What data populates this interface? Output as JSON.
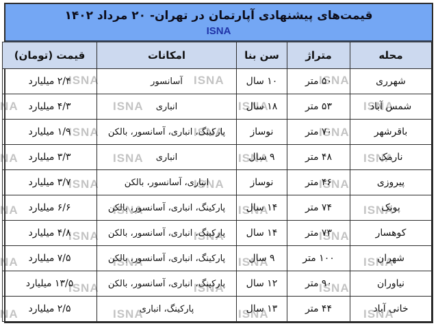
{
  "title": "قیمت‌های پیشنهادی آپارتمان در تهران- ۲۰ مرداد ۱۴۰۲",
  "agency": "ISNA",
  "watermark_text": "ISNA",
  "colors": {
    "title_band_bg": "#74a7f4",
    "agency_text": "#2034a8",
    "header_bg": "#ccd9ef",
    "border": "#2b2b2b",
    "watermark": "#c3c3c3"
  },
  "table": {
    "headers": {
      "neighborhood": "محله",
      "area": "متراژ",
      "age": "سن بنا",
      "amenities": "امکانات",
      "price": "قیمت (تومان)"
    },
    "rows": [
      {
        "neighborhood": "شهرری",
        "area": "۵۰ متر",
        "age": "۱۰ سال",
        "amenities": "آسانسور",
        "price": "۲/۴ میلیارد"
      },
      {
        "neighborhood": "شمس آباد",
        "area": "۵۳ متر",
        "age": "۱۸ سال",
        "amenities": "انباری",
        "price": "۴/۳ میلیارد"
      },
      {
        "neighborhood": "باقرشهر",
        "area": "۷۰ متر",
        "age": "نوساز",
        "amenities": "پارکینگ، انباری، آسانسور، بالکن",
        "price": "۱/۹ میلیارد"
      },
      {
        "neighborhood": "نارمک",
        "area": "۴۸ متر",
        "age": "۹ سال",
        "amenities": "انباری",
        "price": "۳/۳ میلیارد"
      },
      {
        "neighborhood": "پیروزی",
        "area": "۴۶ متر",
        "age": "نوساز",
        "amenities": "انباری، آسانسور، بالکن",
        "price": "۳/۷ میلیارد"
      },
      {
        "neighborhood": "پونک",
        "area": "۷۴ متر",
        "age": "۱۴ سال",
        "amenities": "پارکینگ، انباری، آسانسور، بالکن",
        "price": "۶/۶ میلیارد"
      },
      {
        "neighborhood": "کوهسار",
        "area": "۷۳ متر",
        "age": "۱۴ سال",
        "amenities": "پارکینگ، انباری، آسانسور، بالکن",
        "price": "۴/۸ میلیارد"
      },
      {
        "neighborhood": "شهران",
        "area": "۱۰۰ متر",
        "age": "۹ سال",
        "amenities": "پارکینگ، انباری، آسانسور، بالکن",
        "price": "۷/۵ میلیارد"
      },
      {
        "neighborhood": "نیاوران",
        "area": "۹۰ متر",
        "age": "۱۲ سال",
        "amenities": "پارکینگ، انباری، آسانسور، بالکن",
        "price": "۱۳/۵ میلیارد"
      },
      {
        "neighborhood": "خانی آباد",
        "area": "۴۴ متر",
        "age": "۱۳ سال",
        "amenities": "پارکینگ، انباری",
        "price": "۲/۵ میلیارد"
      }
    ]
  },
  "chart_data": {
    "type": "table",
    "title": "قیمت‌های پیشنهادی آپارتمان در تهران- ۲۰ مرداد ۱۴۰۲",
    "source": "ISNA",
    "columns": [
      "محله",
      "متراژ",
      "سن بنا",
      "امکانات",
      "قیمت (تومان)"
    ],
    "rows": [
      [
        "شهرری",
        "۵۰ متر",
        "۱۰ سال",
        "آسانسور",
        "۲/۴ میلیارد"
      ],
      [
        "شمس آباد",
        "۵۳ متر",
        "۱۸ سال",
        "انباری",
        "۴/۳ میلیارد"
      ],
      [
        "باقرشهر",
        "۷۰ متر",
        "نوساز",
        "پارکینگ، انباری، آسانسور، بالکن",
        "۱/۹ میلیارد"
      ],
      [
        "نارمک",
        "۴۸ متر",
        "۹ سال",
        "انباری",
        "۳/۳ میلیارد"
      ],
      [
        "پیروزی",
        "۴۶ متر",
        "نوساز",
        "انباری، آسانسور، بالکن",
        "۳/۷ میلیارد"
      ],
      [
        "پونک",
        "۷۴ متر",
        "۱۴ سال",
        "پارکینگ، انباری، آسانسور، بالکن",
        "۶/۶ میلیارد"
      ],
      [
        "کوهسار",
        "۷۳ متر",
        "۱۴ سال",
        "پارکینگ، انباری، آسانسور، بالکن",
        "۴/۸ میلیارد"
      ],
      [
        "شهران",
        "۱۰۰ متر",
        "۹ سال",
        "پارکینگ، انباری، آسانسور، بالکن",
        "۷/۵ میلیارد"
      ],
      [
        "نیاوران",
        "۹۰ متر",
        "۱۲ سال",
        "پارکینگ، انباری، آسانسور، بالکن",
        "۱۳/۵ میلیارد"
      ],
      [
        "خانی آباد",
        "۴۴ متر",
        "۱۳ سال",
        "پارکینگ، انباری",
        "۲/۵ میلیارد"
      ]
    ],
    "prices_billion_toman": [
      2.4,
      4.3,
      1.9,
      3.3,
      3.7,
      6.6,
      4.8,
      7.5,
      13.5,
      2.5
    ],
    "areas_m2": [
      50,
      53,
      70,
      48,
      46,
      74,
      73,
      100,
      90,
      44
    ]
  }
}
